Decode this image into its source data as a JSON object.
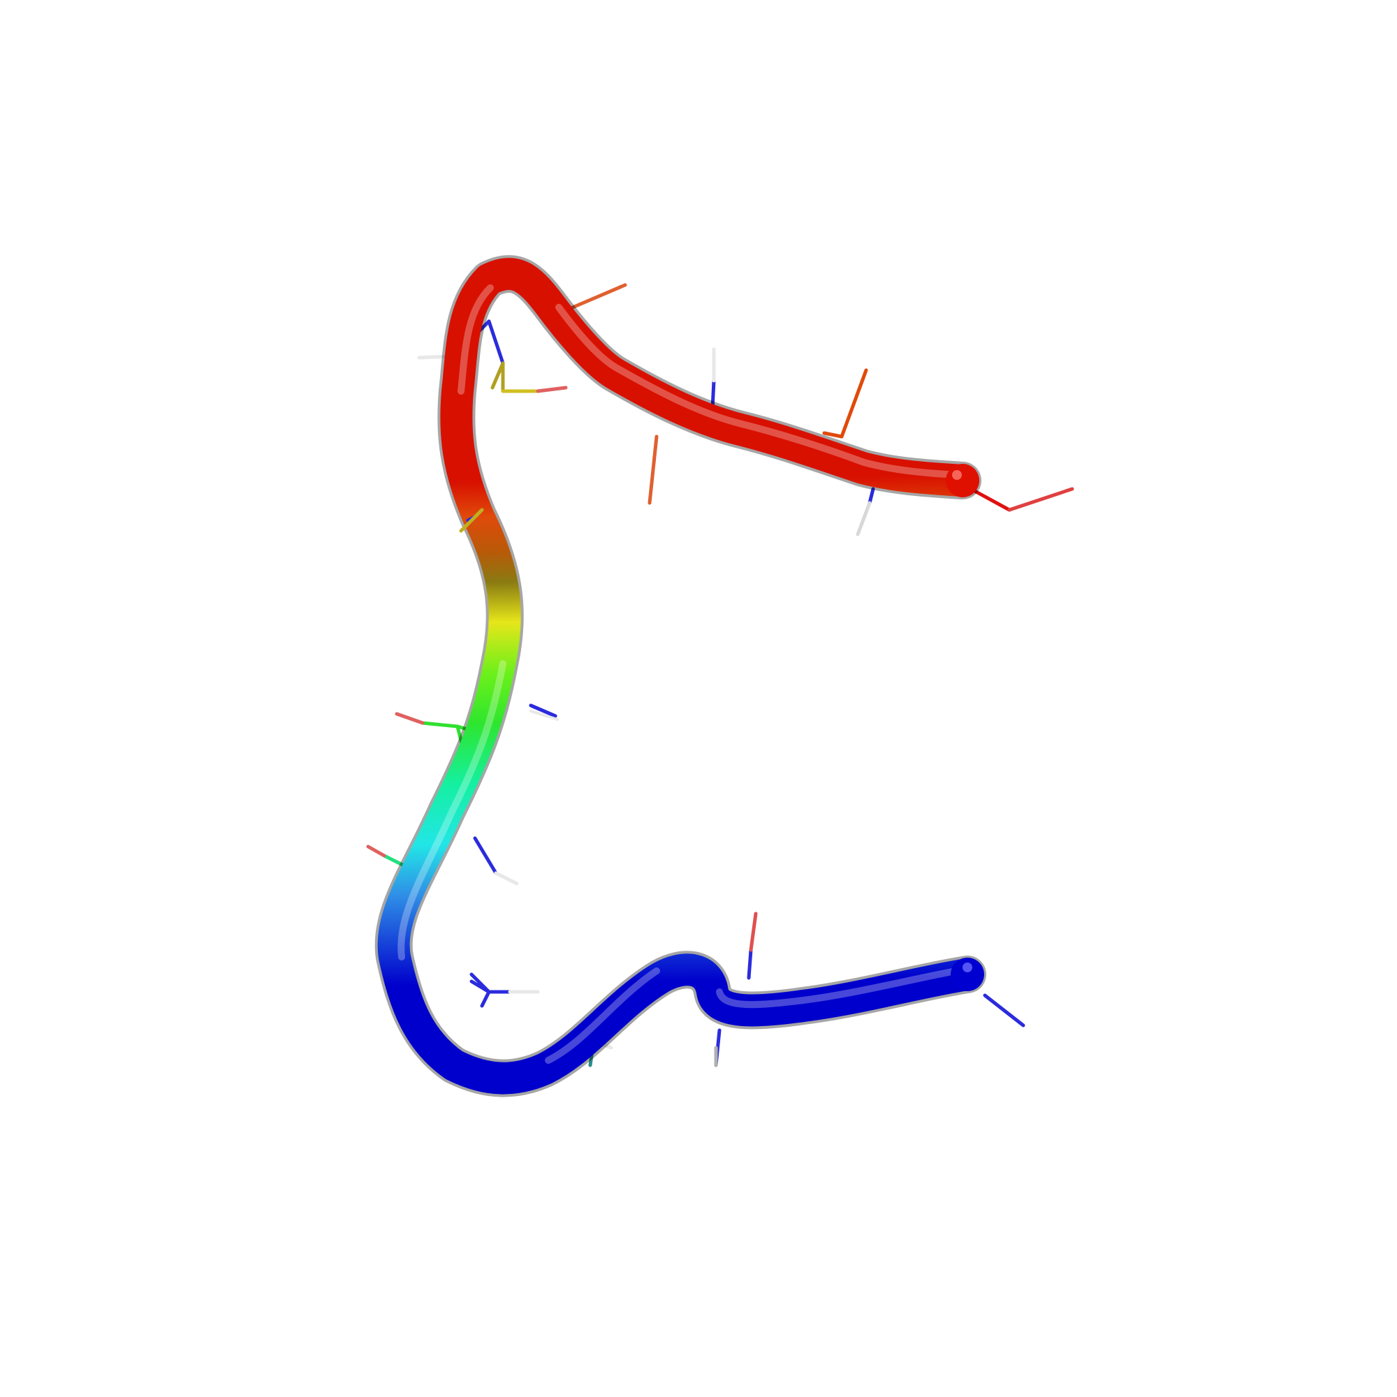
{
  "scene": {
    "subject": "peptide-backbone-tube",
    "background_color": "#ffffff",
    "coloring": "rainbow-n-to-c",
    "gradient_colors": [
      "#0000cc",
      "#2f8fe6",
      "#22e6e6",
      "#14f0a0",
      "#2ee62e",
      "#6ef01a",
      "#e6e61a",
      "#8a7a12",
      "#b85a08",
      "#e04a0a",
      "#d81000"
    ],
    "atom_colors": {
      "nitrogen": "#2b2bdd",
      "oxygen": "#e05050",
      "hydrogen": "#e8e8e8"
    }
  }
}
